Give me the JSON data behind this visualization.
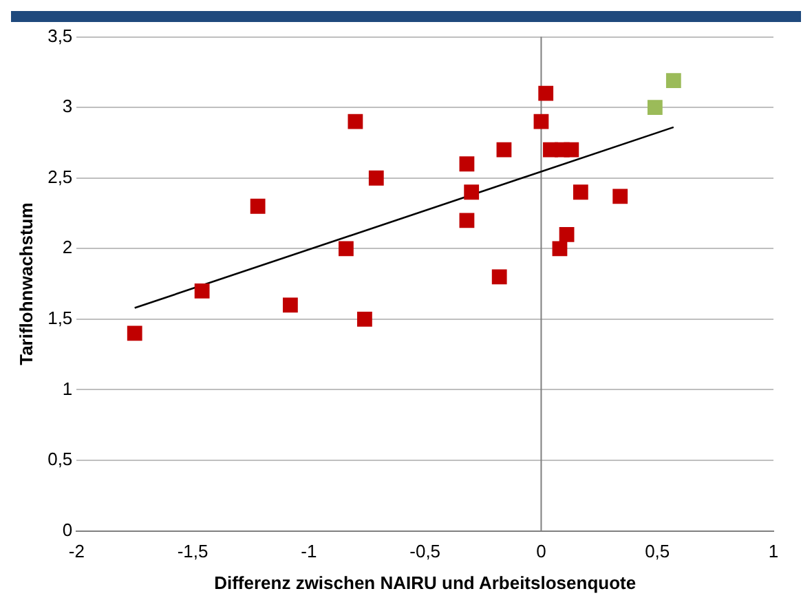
{
  "chart_data": {
    "type": "scatter",
    "xlabel": "Differenz zwischen NAIRU und Arbeitslosenquote",
    "ylabel": "Tariflohnwachstum",
    "marker": "square",
    "grid": "y",
    "legend": false,
    "xlim": [
      -2,
      1
    ],
    "xticks": [
      -2,
      {
        "value": -1.5,
        "label": "-1,5"
      },
      -1,
      {
        "value": -0.5,
        "label": "-0,5"
      },
      0,
      {
        "value": 0.5,
        "label": "0,5"
      },
      1
    ],
    "ylim": [
      0,
      3.5
    ],
    "yticks": [
      0,
      {
        "value": 0.5,
        "label": "0,5"
      },
      1,
      {
        "value": 1.5,
        "label": "1,5"
      },
      2,
      {
        "value": 2.5,
        "label": "2,5"
      },
      3,
      {
        "value": 3.5,
        "label": "3,5"
      }
    ],
    "ref_lines": [
      {
        "axis": "x",
        "value": 0,
        "color": "#7f7f7f"
      }
    ],
    "series": [
      {
        "color": "#c00000",
        "x": [
          -1.75,
          -1.46,
          -1.22,
          -1.08,
          -0.84,
          -0.8,
          -0.76,
          -0.71,
          -0.32,
          -0.3,
          -0.32,
          -0.18,
          -0.16,
          0,
          0.02,
          0.04,
          0.09,
          0.13,
          0.11,
          0.08,
          0.17,
          0.34
        ],
        "values": [
          1.4,
          1.7,
          2.3,
          1.6,
          2.0,
          2.9,
          1.5,
          2.5,
          2.6,
          2.4,
          2.2,
          1.8,
          2.7,
          2.9,
          3.1,
          2.7,
          2.7,
          2.7,
          2.1,
          2.0,
          2.4,
          2.37
        ]
      },
      {
        "color": "#9bbb59",
        "x": [
          0.49,
          0.57
        ],
        "values": [
          3.0,
          3.19
        ]
      },
      {
        "type": "line",
        "color": "#000000",
        "marker": "none",
        "x": [
          -1.75,
          0.57
        ],
        "values": [
          1.58,
          2.86
        ]
      }
    ]
  }
}
